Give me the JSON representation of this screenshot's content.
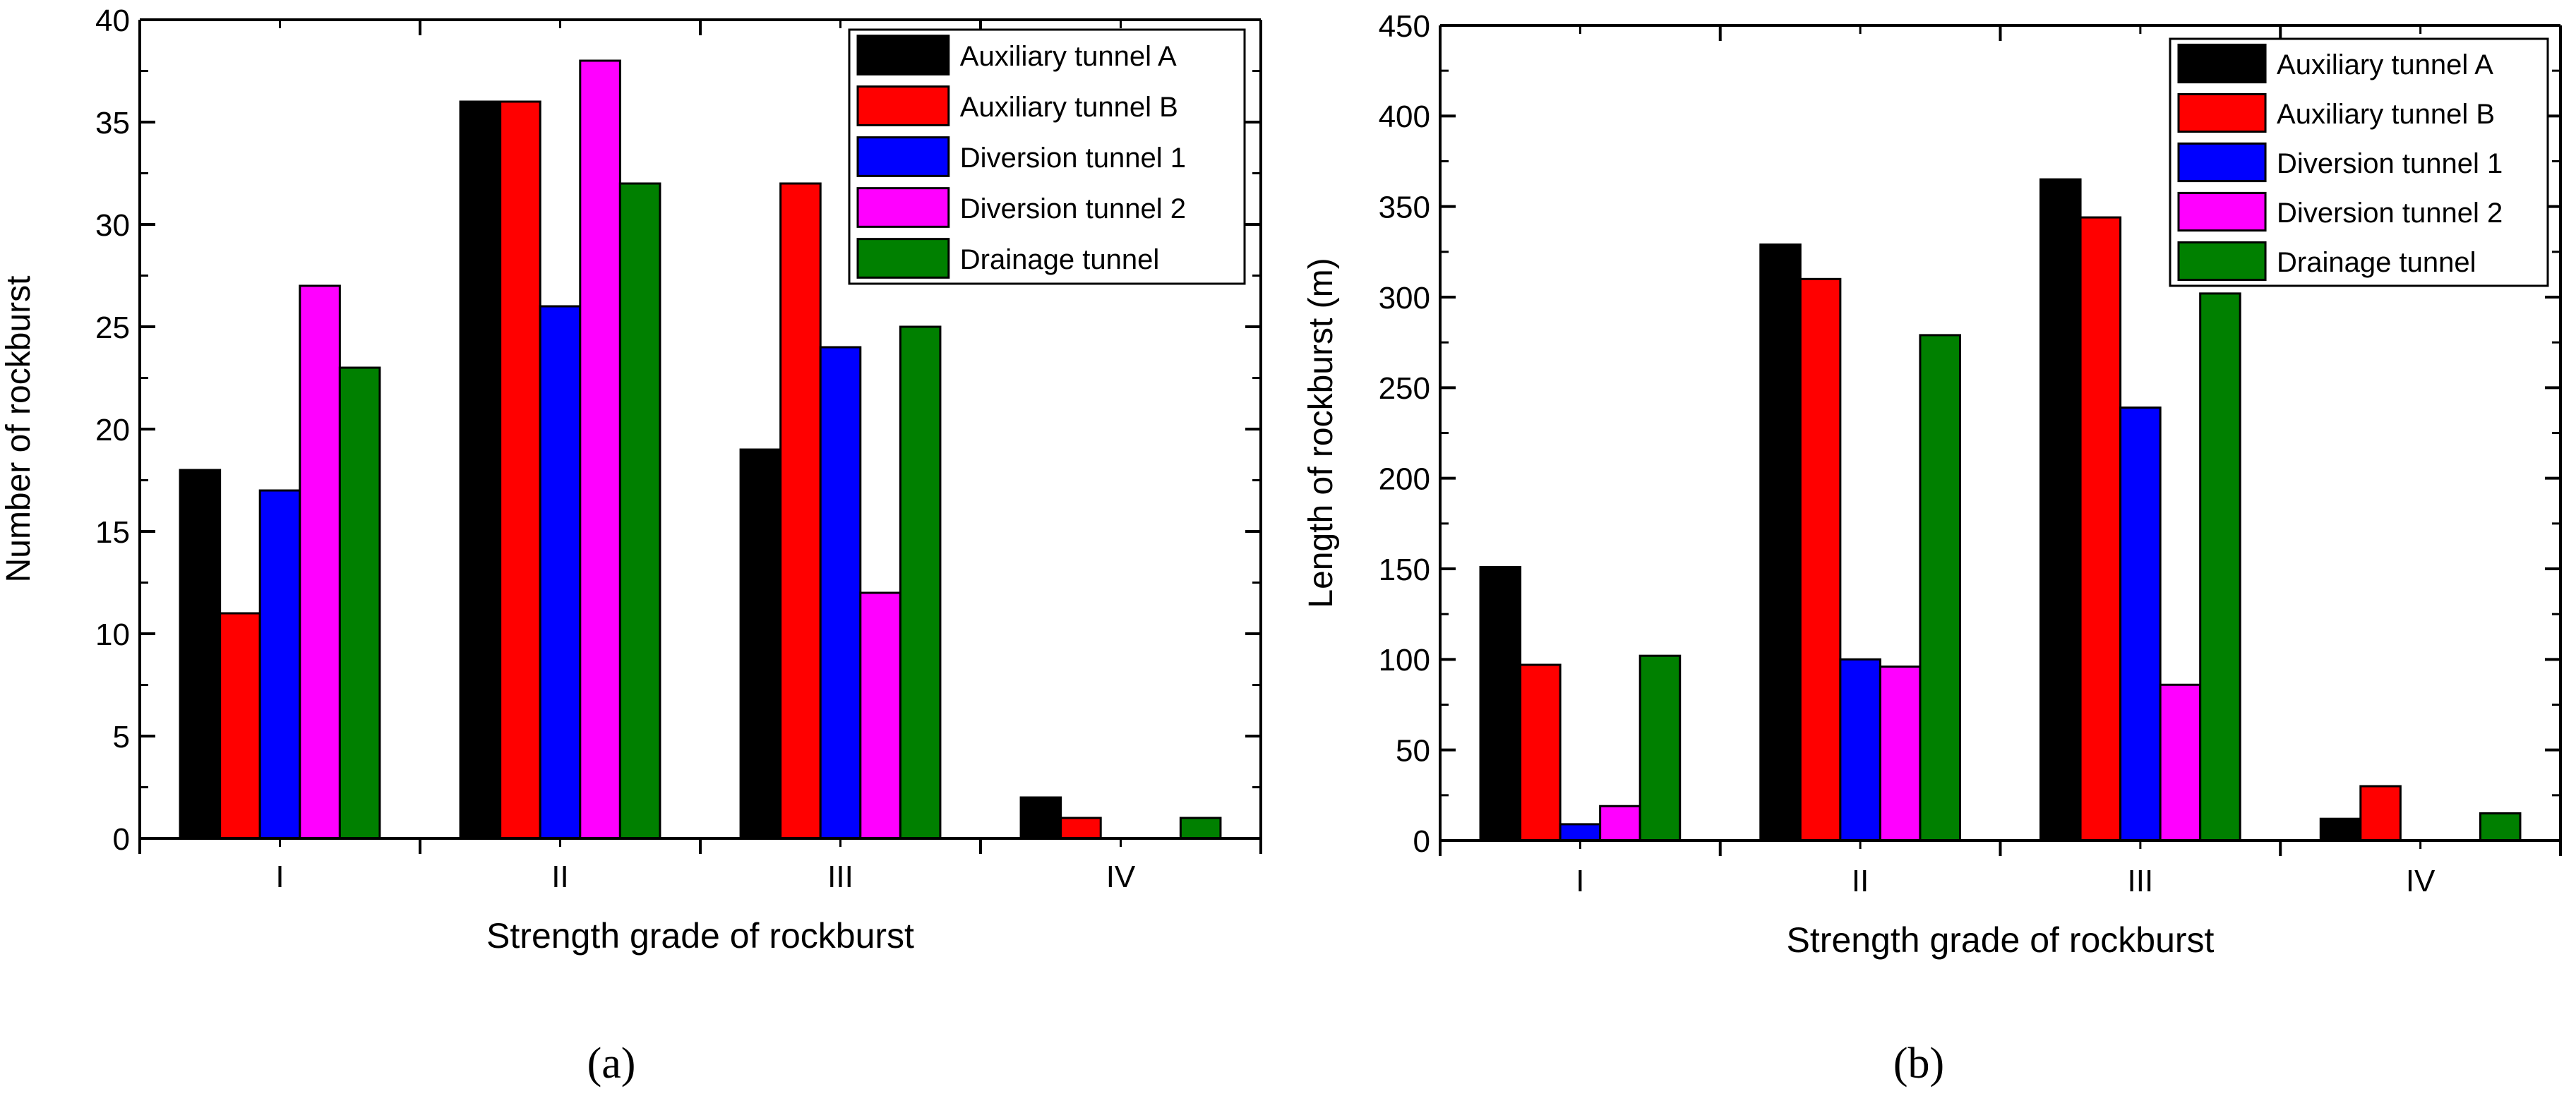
{
  "chart_data": [
    {
      "type": "bar",
      "panel_label": "(a)",
      "panel_letter": "a",
      "title": "",
      "xlabel": "Strength grade of rockburst",
      "ylabel": "Number of rockburst",
      "categories": [
        "I",
        "II",
        "III",
        "IV"
      ],
      "ylim": [
        0,
        40
      ],
      "yticks": [
        0,
        5,
        10,
        15,
        20,
        25,
        30,
        35,
        40
      ],
      "ytick_labels": [
        "0",
        "5",
        "10",
        "15",
        "20",
        "25",
        "30",
        "35",
        "40"
      ],
      "legend_position": "top-right",
      "grid": false,
      "series": [
        {
          "name": "Auxiliary tunnel A",
          "color": "#000000",
          "values": [
            18,
            36,
            19,
            2
          ]
        },
        {
          "name": "Auxiliary tunnel B",
          "color": "#ff0000",
          "values": [
            11,
            36,
            32,
            1
          ]
        },
        {
          "name": "Diversion tunnel 1",
          "color": "#0000ff",
          "values": [
            17,
            26,
            24,
            0
          ]
        },
        {
          "name": "Diversion tunnel 2",
          "color": "#ff00ff",
          "values": [
            27,
            38,
            12,
            0
          ]
        },
        {
          "name": "Drainage tunnel",
          "color": "#008000",
          "values": [
            23,
            32,
            25,
            1
          ]
        }
      ]
    },
    {
      "type": "bar",
      "panel_label": "(b)",
      "panel_letter": "b",
      "title": "",
      "xlabel": "Strength grade of rockburst",
      "ylabel": "Length of rockburst (m)",
      "categories": [
        "I",
        "II",
        "III",
        "IV"
      ],
      "ylim": [
        0,
        450
      ],
      "yticks": [
        0,
        50,
        100,
        150,
        200,
        250,
        300,
        350,
        400,
        450
      ],
      "ytick_labels": [
        "0",
        "50",
        "100",
        "150",
        "200",
        "250",
        "300",
        "350",
        "400",
        "450"
      ],
      "legend_position": "top-right",
      "grid": false,
      "series": [
        {
          "name": "Auxiliary tunnel A",
          "color": "#000000",
          "values": [
            151,
            329,
            365,
            12
          ]
        },
        {
          "name": "Auxiliary tunnel B",
          "color": "#ff0000",
          "values": [
            97,
            310,
            344,
            30
          ]
        },
        {
          "name": "Diversion tunnel 1",
          "color": "#0000ff",
          "values": [
            9,
            100,
            239,
            0
          ]
        },
        {
          "name": "Diversion tunnel 2",
          "color": "#ff00ff",
          "values": [
            19,
            96,
            86,
            0
          ]
        },
        {
          "name": "Drainage tunnel",
          "color": "#008000",
          "values": [
            102,
            279,
            302,
            15
          ]
        }
      ]
    }
  ]
}
